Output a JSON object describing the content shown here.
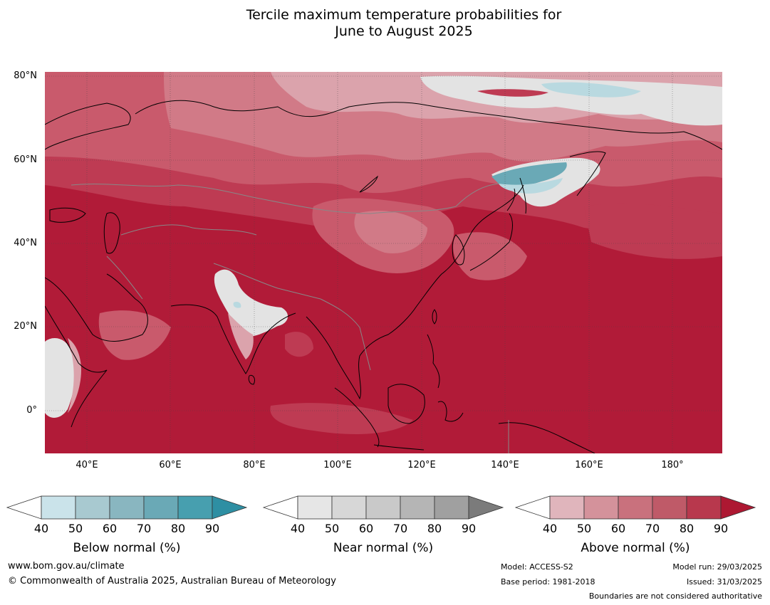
{
  "title_line1": "Tercile maximum temperature probabilities for",
  "title_line2": "June to August 2025",
  "map": {
    "lat_labels": [
      "80°N",
      "60°N",
      "40°N",
      "20°N",
      "0°"
    ],
    "lon_labels": [
      "40°E",
      "60°E",
      "80°E",
      "100°E",
      "120°E",
      "140°E",
      "160°E",
      "180°"
    ],
    "colors": {
      "above_90": "#b11b38",
      "above_80": "#be3b53",
      "above_70": "#c95a6c",
      "above_60": "#d17a87",
      "above_50": "#dba3ac",
      "near": "#e3e3e3",
      "below_50": "#b9d9e0",
      "below_70": "#6aa9b6",
      "water_white": "#ffffff",
      "grid": "#444444",
      "coast": "#000000",
      "border": "#888888"
    }
  },
  "colorbars": [
    {
      "name": "below",
      "title": "Below normal (%)",
      "ticks": [
        "40",
        "50",
        "60",
        "70",
        "80",
        "90"
      ],
      "colors": [
        "#cae3ea",
        "#a8c9d0",
        "#89b6c0",
        "#6aa9b6",
        "#479faf",
        "#2e8fa3"
      ]
    },
    {
      "name": "near",
      "title": "Near normal (%)",
      "ticks": [
        "40",
        "50",
        "60",
        "70",
        "80",
        "90"
      ],
      "colors": [
        "#e6e6e6",
        "#d7d7d7",
        "#c9c9c9",
        "#b5b5b5",
        "#a0a0a0",
        "#7b7b7b"
      ]
    },
    {
      "name": "above",
      "title": "Above normal (%)",
      "ticks": [
        "40",
        "50",
        "60",
        "70",
        "80",
        "90"
      ],
      "colors": [
        "#e0b5bc",
        "#d4929b",
        "#c9717d",
        "#bf5a68",
        "#b8384d",
        "#ad1832"
      ]
    }
  ],
  "footer": {
    "website": "www.bom.gov.au/climate",
    "copyright": "© Commonwealth of Australia 2025, Australian Bureau of Meteorology",
    "model": "Model: ACCESS-S2",
    "base_period": "Base period: 1981-2018",
    "model_run": "Model run: 29/03/2025",
    "issued": "Issued: 31/03/2025",
    "disclaimer": "Boundaries are not considered authoritative"
  }
}
